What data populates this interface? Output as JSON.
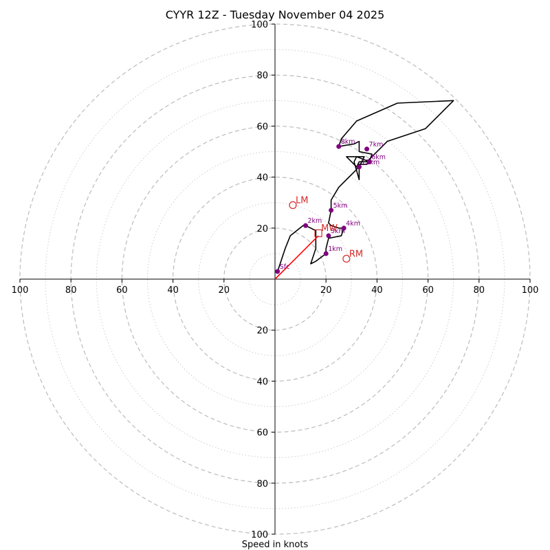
{
  "chart_data": {
    "type": "hodograph",
    "title": "CYYR 12Z - Tuesday November 04 2025",
    "xlabel": "Speed in knots",
    "units": "knots",
    "max_speed": 100,
    "ring_major": [
      20,
      40,
      60,
      80,
      100
    ],
    "ring_minor": [
      10,
      30,
      50,
      70,
      90
    ],
    "tick_values": [
      20,
      40,
      60,
      80,
      100
    ],
    "colors": {
      "trace": "#000000",
      "height_marker": "#800080",
      "storm_motion": "#d62728",
      "shear_vector": "#ff0000",
      "ring": "#bbbbbb",
      "axis": "#000000"
    },
    "trace": [
      [
        1,
        3
      ],
      [
        4,
        12
      ],
      [
        6,
        17
      ],
      [
        11,
        21
      ],
      [
        12,
        21
      ],
      [
        16,
        19
      ],
      [
        16,
        16
      ],
      [
        16,
        12
      ],
      [
        14,
        6
      ],
      [
        16,
        7
      ],
      [
        20,
        10
      ],
      [
        20,
        12
      ],
      [
        21,
        16
      ],
      [
        26,
        17
      ],
      [
        27,
        20
      ],
      [
        25,
        20
      ],
      [
        22,
        21
      ],
      [
        21,
        22
      ],
      [
        22,
        27
      ],
      [
        22,
        31
      ],
      [
        25,
        36
      ],
      [
        30,
        41
      ],
      [
        32,
        43
      ],
      [
        33,
        45
      ],
      [
        36,
        45
      ],
      [
        37,
        46
      ],
      [
        32,
        48
      ],
      [
        31,
        46
      ],
      [
        33,
        39
      ],
      [
        33,
        44
      ],
      [
        35,
        48
      ],
      [
        28,
        48
      ],
      [
        30,
        46
      ],
      [
        32,
        44
      ],
      [
        33,
        46
      ],
      [
        37,
        46
      ],
      [
        38,
        49
      ],
      [
        33,
        50
      ],
      [
        33,
        54
      ],
      [
        31,
        53
      ],
      [
        25,
        52
      ],
      [
        26,
        55
      ],
      [
        32,
        62
      ],
      [
        48,
        69
      ],
      [
        70,
        70
      ],
      [
        59,
        59
      ],
      [
        44,
        54
      ],
      [
        36,
        46
      ]
    ],
    "height_markers": [
      {
        "label": "Sfc",
        "u": 1,
        "v": 3
      },
      {
        "label": "1km",
        "u": 20,
        "v": 10
      },
      {
        "label": "2km",
        "u": 12,
        "v": 21
      },
      {
        "label": "3km",
        "u": 21,
        "v": 17
      },
      {
        "label": "4km",
        "u": 27,
        "v": 20
      },
      {
        "label": "5km",
        "u": 22,
        "v": 27
      },
      {
        "label": "6km",
        "u": 37,
        "v": 46
      },
      {
        "label": "7km",
        "u": 36,
        "v": 51
      },
      {
        "label": "8km",
        "u": 25,
        "v": 52
      },
      {
        "label": "12km",
        "u": 33,
        "v": 44
      }
    ],
    "storm_motion": [
      {
        "label": "LM",
        "u": 7,
        "v": 29,
        "shape": "circle"
      },
      {
        "label": "MW",
        "u": 17,
        "v": 18,
        "shape": "square"
      },
      {
        "label": "RM",
        "u": 28,
        "v": 8,
        "shape": "circle"
      }
    ],
    "shear_vector": {
      "from": [
        0,
        0
      ],
      "to": [
        17,
        17
      ]
    }
  }
}
